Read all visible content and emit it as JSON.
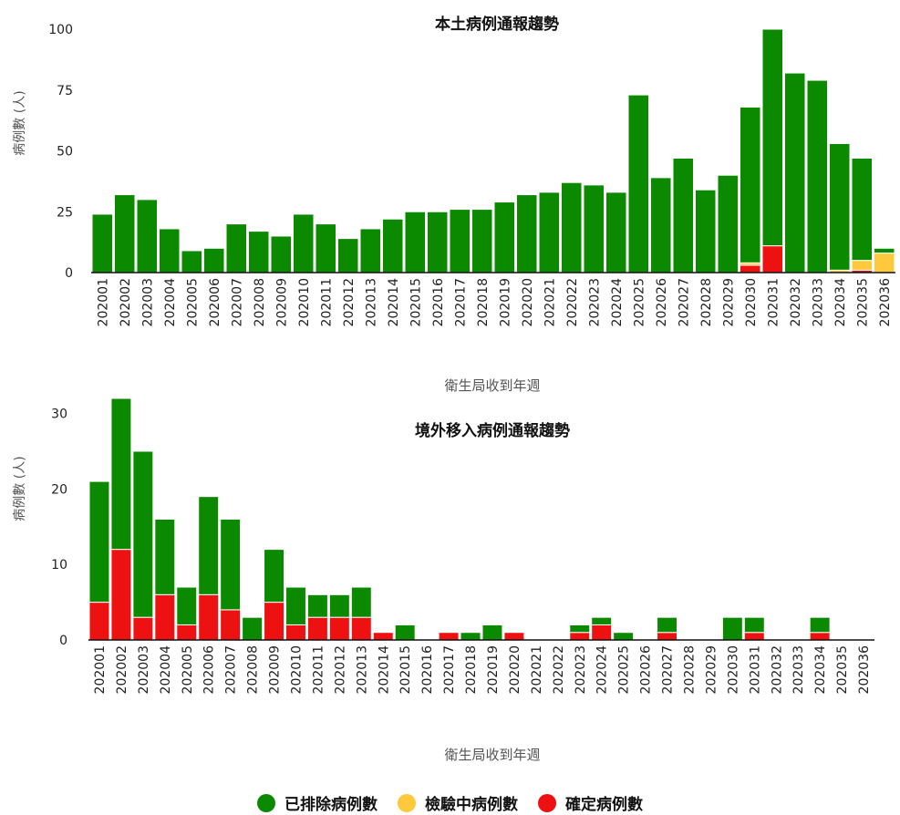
{
  "colors": {
    "excluded": "#0b8a00",
    "testing": "#ffc83d",
    "confirmed": "#ee1111"
  },
  "legend": [
    {
      "label": "已排除病例數",
      "color": "#0b8a00"
    },
    {
      "label": "檢驗中病例數",
      "color": "#ffc83d"
    },
    {
      "label": "確定病例數",
      "color": "#ee1111"
    }
  ],
  "chart_data": [
    {
      "type": "bar",
      "stacked": true,
      "title": "本土病例通報趨勢",
      "xlabel": "衛生局收到年週",
      "ylabel": "病例數 (人)",
      "ylim": [
        0,
        100
      ],
      "yticks": [
        0,
        25,
        50,
        75,
        100
      ],
      "categories": [
        "202001",
        "202002",
        "202003",
        "202004",
        "202005",
        "202006",
        "202007",
        "202008",
        "202009",
        "202010",
        "202011",
        "202012",
        "202013",
        "202014",
        "202015",
        "202016",
        "202017",
        "202018",
        "202019",
        "202020",
        "202021",
        "202022",
        "202023",
        "202024",
        "202025",
        "202026",
        "202027",
        "202028",
        "202029",
        "202030",
        "202031",
        "202032",
        "202033",
        "202034",
        "202035",
        "202036"
      ],
      "series": [
        {
          "name": "確定病例數",
          "color": "#ee1111",
          "values": [
            0,
            0,
            0,
            0,
            0,
            0,
            0,
            0,
            0,
            0,
            0,
            0,
            0,
            0,
            0,
            0,
            0,
            0,
            0,
            0,
            0,
            0,
            0,
            0,
            0,
            0,
            0,
            0,
            0,
            3,
            11,
            0,
            0,
            0,
            1,
            0
          ]
        },
        {
          "name": "檢驗中病例數",
          "color": "#ffc83d",
          "values": [
            0,
            0,
            0,
            0,
            0,
            0,
            0,
            0,
            0,
            0,
            0,
            0,
            0,
            0,
            0,
            0,
            0,
            0,
            0,
            0,
            0,
            0,
            0,
            0,
            0,
            0,
            0,
            0,
            0,
            1,
            0,
            0,
            0,
            1,
            4,
            8
          ]
        },
        {
          "name": "已排除病例數",
          "color": "#0b8a00",
          "values": [
            24,
            32,
            30,
            18,
            9,
            10,
            20,
            17,
            15,
            24,
            20,
            14,
            18,
            22,
            25,
            25,
            26,
            26,
            29,
            32,
            33,
            37,
            36,
            33,
            73,
            39,
            47,
            34,
            40,
            64,
            89,
            82,
            79,
            52,
            42,
            2
          ]
        }
      ]
    },
    {
      "type": "bar",
      "stacked": true,
      "title": "境外移入病例通報趨勢",
      "xlabel": "衛生局收到年週",
      "ylabel": "病例數 (人)",
      "ylim": [
        0,
        32
      ],
      "yticks": [
        0,
        10,
        20,
        30
      ],
      "categories": [
        "202001",
        "202002",
        "202003",
        "202004",
        "202005",
        "202006",
        "202007",
        "202008",
        "202009",
        "202010",
        "202011",
        "202012",
        "202013",
        "202014",
        "202015",
        "202016",
        "202017",
        "202018",
        "202019",
        "202020",
        "202021",
        "202022",
        "202023",
        "202024",
        "202025",
        "202026",
        "202027",
        "202028",
        "202029",
        "202030",
        "202031",
        "202032",
        "202033",
        "202034",
        "202035",
        "202036"
      ],
      "series": [
        {
          "name": "確定病例數",
          "color": "#ee1111",
          "values": [
            5,
            12,
            3,
            6,
            2,
            6,
            4,
            0,
            5,
            2,
            3,
            3,
            3,
            1,
            0,
            0,
            1,
            0,
            0,
            1,
            0,
            0,
            1,
            2,
            0,
            0,
            1,
            0,
            0,
            0,
            1,
            0,
            0,
            1,
            0,
            0
          ]
        },
        {
          "name": "檢驗中病例數",
          "color": "#ffc83d",
          "values": [
            0,
            0,
            0,
            0,
            0,
            0,
            0,
            0,
            0,
            0,
            0,
            0,
            0,
            0,
            0,
            0,
            0,
            0,
            0,
            0,
            0,
            0,
            0,
            0,
            0,
            0,
            0,
            0,
            0,
            0,
            0,
            0,
            0,
            0,
            0,
            0
          ]
        },
        {
          "name": "已排除病例數",
          "color": "#0b8a00",
          "values": [
            16,
            20,
            22,
            10,
            5,
            13,
            12,
            3,
            7,
            5,
            3,
            3,
            4,
            0,
            2,
            0,
            0,
            1,
            2,
            0,
            0,
            0,
            1,
            1,
            1,
            0,
            2,
            0,
            0,
            3,
            2,
            0,
            0,
            2,
            0,
            0
          ]
        }
      ]
    }
  ]
}
